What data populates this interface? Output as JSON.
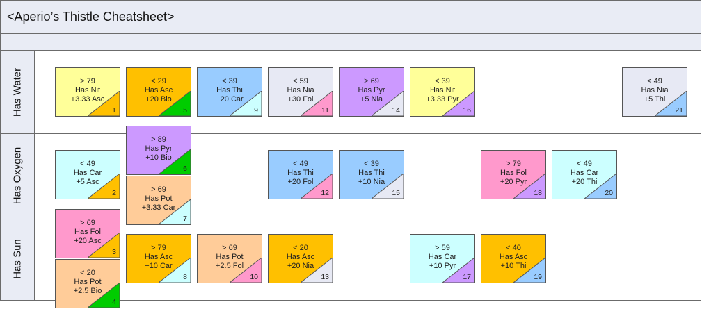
{
  "title": "<Aperio’s Thistle Cheatsheet>",
  "lanes": [
    {
      "id": "water",
      "label": "Has Water"
    },
    {
      "id": "oxygen",
      "label": "Has Oxygen"
    },
    {
      "id": "sun",
      "label": "Has Sun"
    }
  ],
  "colors": {
    "yellow": "#ffff99",
    "orange": "#ffc000",
    "blue": "#99ccff",
    "lavender": "#e7e9f4",
    "purple": "#cc99ff",
    "pink": "#ff99cc",
    "cyan": "#ccffff",
    "peach": "#ffcc99",
    "green": "#00cc00",
    "border": "#555555",
    "band": "#e9ecf5"
  },
  "cards": [
    {
      "num": "1",
      "lane": "water",
      "l1": "> 79",
      "l2": "Has Nit",
      "l3": "+3.33 Asc",
      "fill": "yellow",
      "corner": "orange"
    },
    {
      "num": "5",
      "lane": "water",
      "l1": "< 29",
      "l2": "Has Asc",
      "l3": "+20 Bio",
      "fill": "orange",
      "corner": "green"
    },
    {
      "num": "9",
      "lane": "water",
      "l1": "< 39",
      "l2": "Has Thi",
      "l3": "+20 Car",
      "fill": "blue",
      "corner": "cyan"
    },
    {
      "num": "11",
      "lane": "water",
      "l1": "< 59",
      "l2": "Has Nia",
      "l3": "+30 Fol",
      "fill": "lavender",
      "corner": "pink"
    },
    {
      "num": "14",
      "lane": "water",
      "l1": "> 69",
      "l2": "Has Pyr",
      "l3": "+5 Nia",
      "fill": "purple",
      "corner": "lavender"
    },
    {
      "num": "16",
      "lane": "water",
      "l1": "< 39",
      "l2": "Has Nit",
      "l3": "+3.33 Pyr",
      "fill": "yellow",
      "corner": "purple"
    },
    {
      "num": "21",
      "lane": "water",
      "l1": "< 49",
      "l2": "Has Nia",
      "l3": "+5 Thi",
      "fill": "lavender",
      "corner": "blue"
    },
    {
      "num": "6",
      "lane": "oxygen",
      "l1": "> 89",
      "l2": "Has Pyr",
      "l3": "+10 Bio",
      "fill": "purple",
      "corner": "green"
    },
    {
      "num": "2",
      "lane": "oxygen",
      "l1": "< 49",
      "l2": "Has Car",
      "l3": "+5 Asc",
      "fill": "cyan",
      "corner": "orange"
    },
    {
      "num": "7",
      "lane": "oxygen",
      "l1": "> 69",
      "l2": "Has Pot",
      "l3": "+3.33 Car",
      "fill": "peach",
      "corner": "cyan"
    },
    {
      "num": "12",
      "lane": "oxygen",
      "l1": "< 49",
      "l2": "Has Thi",
      "l3": "+20 Fol",
      "fill": "blue",
      "corner": "pink"
    },
    {
      "num": "15",
      "lane": "oxygen",
      "l1": "< 39",
      "l2": "Has Thi",
      "l3": "+10 Nia",
      "fill": "blue",
      "corner": "lavender"
    },
    {
      "num": "18",
      "lane": "oxygen",
      "l1": "> 79",
      "l2": "Has Fol",
      "l3": "+20 Pyr",
      "fill": "pink",
      "corner": "purple"
    },
    {
      "num": "20",
      "lane": "oxygen",
      "l1": "< 49",
      "l2": "Has Car",
      "l3": "+20 Thi",
      "fill": "cyan",
      "corner": "blue"
    },
    {
      "num": "3",
      "lane": "sun",
      "l1": "> 69",
      "l2": "Has Fol",
      "l3": "+20 Asc",
      "fill": "pink",
      "corner": "orange"
    },
    {
      "num": "4",
      "lane": "sun",
      "l1": "< 20",
      "l2": "Has Pot",
      "l3": "+2.5 Bio",
      "fill": "peach",
      "corner": "green"
    },
    {
      "num": "8",
      "lane": "sun",
      "l1": "> 79",
      "l2": "Has Asc",
      "l3": "+10 Car",
      "fill": "orange",
      "corner": "cyan"
    },
    {
      "num": "10",
      "lane": "sun",
      "l1": "> 69",
      "l2": "Has Pot",
      "l3": "+2.5  Fol",
      "fill": "peach",
      "corner": "pink"
    },
    {
      "num": "13",
      "lane": "sun",
      "l1": "< 20",
      "l2": "Has Asc",
      "l3": "+20 Nia",
      "fill": "orange",
      "corner": "lavender"
    },
    {
      "num": "17",
      "lane": "sun",
      "l1": "> 59",
      "l2": "Has Car",
      "l3": "+10 Pyr",
      "fill": "cyan",
      "corner": "purple"
    },
    {
      "num": "19",
      "lane": "sun",
      "l1": "< 40",
      "l2": "Has Asc",
      "l3": "+10 Thi",
      "fill": "orange",
      "corner": "blue"
    }
  ]
}
